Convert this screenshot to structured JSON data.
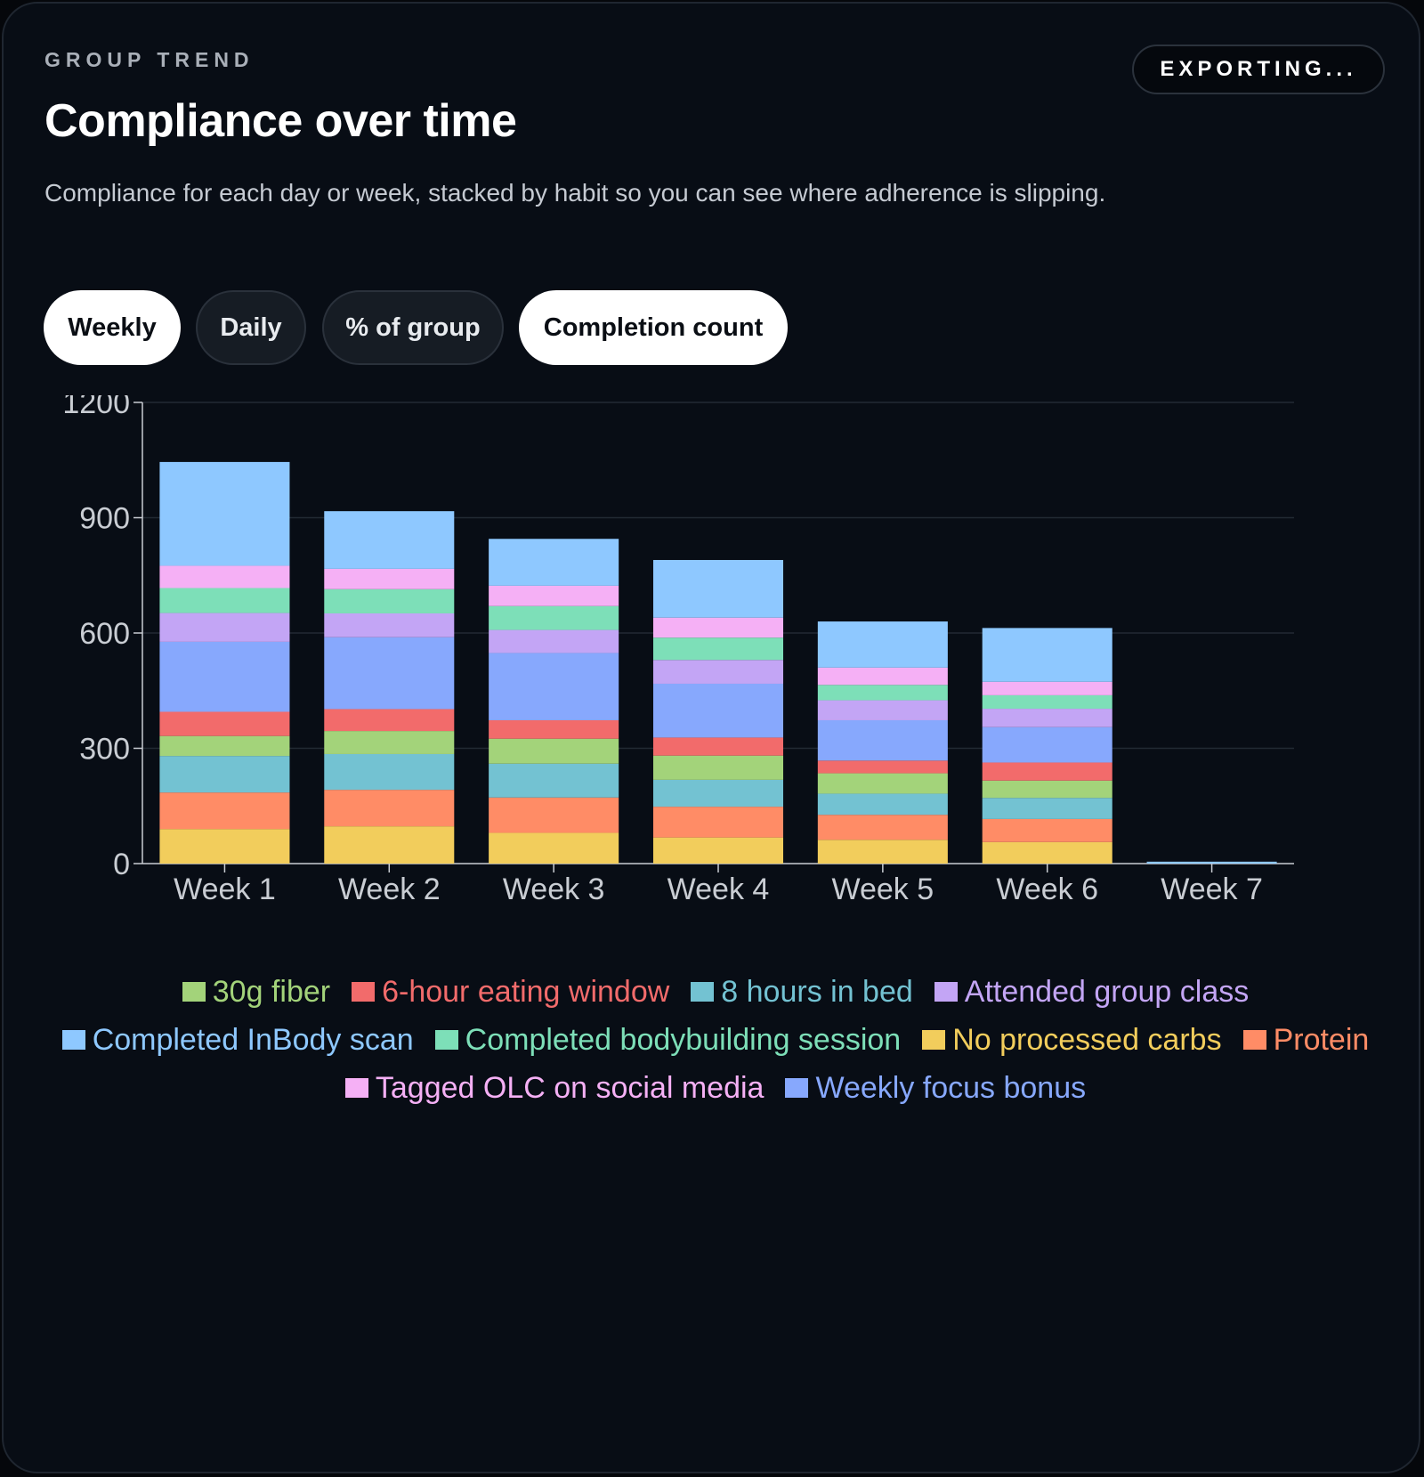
{
  "header": {
    "eyebrow": "GROUP TREND",
    "title": "Compliance over time",
    "subtitle": "Compliance for each day or week, stacked by habit so you can see where adherence is slipping.",
    "export_label": "EXPORTING..."
  },
  "controls": {
    "period": [
      {
        "label": "Weekly",
        "active": true
      },
      {
        "label": "Daily",
        "active": false
      }
    ],
    "metric": [
      {
        "label": "% of group",
        "active": false
      },
      {
        "label": "Completion count",
        "active": true
      }
    ]
  },
  "chart_data": {
    "type": "bar",
    "stacked": true,
    "categories": [
      "Week 1",
      "Week 2",
      "Week 3",
      "Week 4",
      "Week 5",
      "Week 6",
      "Week 7"
    ],
    "ylim": [
      0,
      1200
    ],
    "yticks": [
      0,
      300,
      600,
      900,
      1200
    ],
    "grid": true,
    "legend_position": "bottom",
    "series": [
      {
        "name": "No processed carbs",
        "color": "#f2cd5c",
        "values": [
          90,
          97,
          80,
          68,
          62,
          56,
          0
        ]
      },
      {
        "name": "Protein",
        "color": "#ff8c66",
        "values": [
          95,
          95,
          92,
          80,
          65,
          60,
          0
        ]
      },
      {
        "name": "8 hours in bed",
        "color": "#73c2d2",
        "values": [
          95,
          93,
          88,
          70,
          55,
          55,
          0
        ]
      },
      {
        "name": "30g fiber",
        "color": "#a3d37a",
        "values": [
          52,
          60,
          65,
          63,
          53,
          45,
          0
        ]
      },
      {
        "name": "6-hour eating window",
        "color": "#f26b6b",
        "values": [
          63,
          57,
          48,
          47,
          33,
          47,
          0
        ]
      },
      {
        "name": "Weekly focus bonus",
        "color": "#87a8fd",
        "values": [
          182,
          187,
          175,
          140,
          105,
          92,
          0
        ]
      },
      {
        "name": "Attended group class",
        "color": "#c3a5f5",
        "values": [
          75,
          62,
          60,
          62,
          52,
          48,
          0
        ]
      },
      {
        "name": "Completed bodybuilding session",
        "color": "#7ddfb8",
        "values": [
          65,
          63,
          62,
          58,
          40,
          35,
          0
        ]
      },
      {
        "name": "Tagged OLC on social media",
        "color": "#f5b0f5",
        "values": [
          58,
          53,
          53,
          52,
          45,
          35,
          0
        ]
      },
      {
        "name": "Completed InBody scan",
        "color": "#8ec8ff",
        "values": [
          270,
          150,
          122,
          150,
          120,
          140,
          5
        ]
      }
    ],
    "legend_order": [
      "30g fiber",
      "6-hour eating window",
      "8 hours in bed",
      "Attended group class",
      "Completed InBody scan",
      "Completed bodybuilding session",
      "No processed carbs",
      "Protein",
      "Tagged OLC on social media",
      "Weekly focus bonus"
    ]
  }
}
